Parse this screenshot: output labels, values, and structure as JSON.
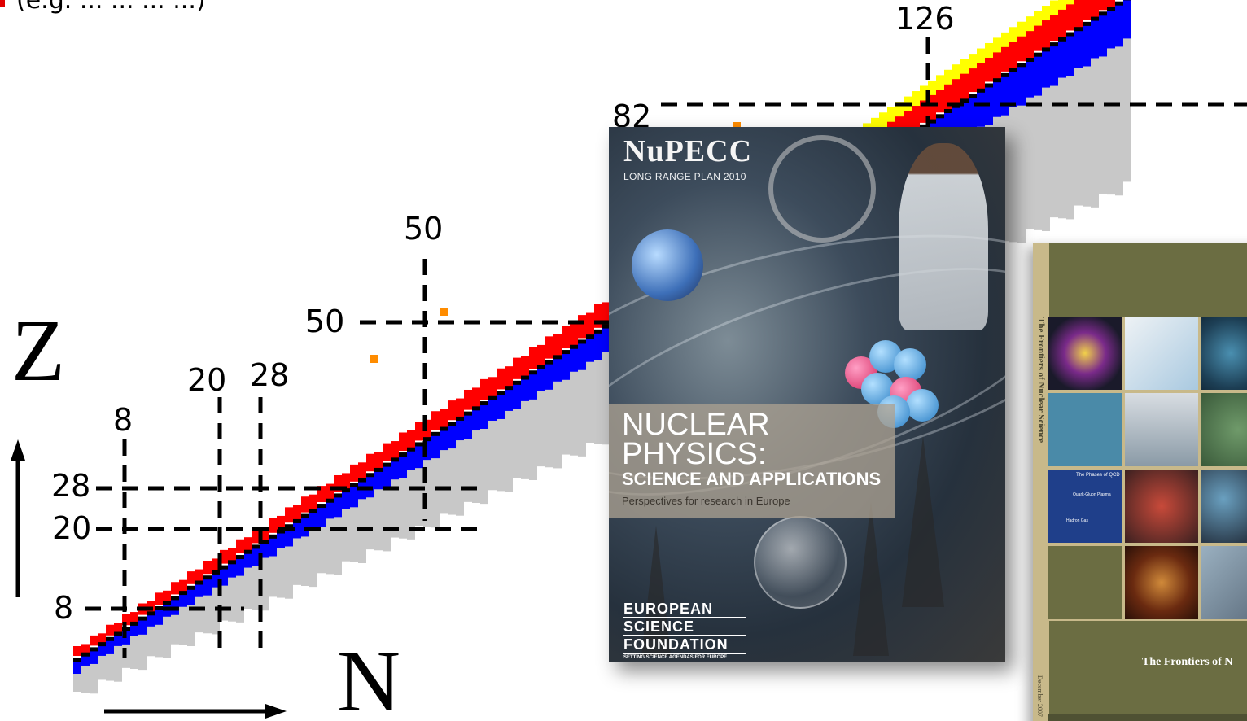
{
  "header": {
    "text": "(e.g. ... ... ... ...)"
  },
  "axes": {
    "z_label": "Z",
    "n_label": "N"
  },
  "magic_numbers": {
    "n": [
      "8",
      "20",
      "28",
      "50",
      "82",
      "126"
    ],
    "z": [
      "8",
      "20",
      "28",
      "50"
    ]
  },
  "colors": {
    "neutron_rich": "#0000ff",
    "proton_rich": "#ff0000",
    "stable": "#000000",
    "predicted": "#c8c8c8",
    "alpha": "#ffff00",
    "fission": "#ff8c00"
  },
  "cover_nupecc": {
    "logo": "NuPECC",
    "subtitle": "LONG RANGE PLAN 2010",
    "title": "NUCLEAR PHYSICS:",
    "subtitle2": "SCIENCE AND APPLICATIONS",
    "tagline": "Perspectives for research in Europe",
    "esf_lines": [
      "EUROPEAN",
      "SCIENCE",
      "FOUNDATION"
    ],
    "esf_tag": "SETTING SCIENCE AGENDAS FOR EUROPE"
  },
  "cover_frontiers": {
    "spine_title": "The Frontiers of Nuclear Science",
    "spine_date": "December 2007",
    "title": "The Frontiers of N",
    "cell_labels": [
      "The Phases of QCD",
      "Quark-Gluon Plasma",
      "Hadron Gas"
    ]
  }
}
